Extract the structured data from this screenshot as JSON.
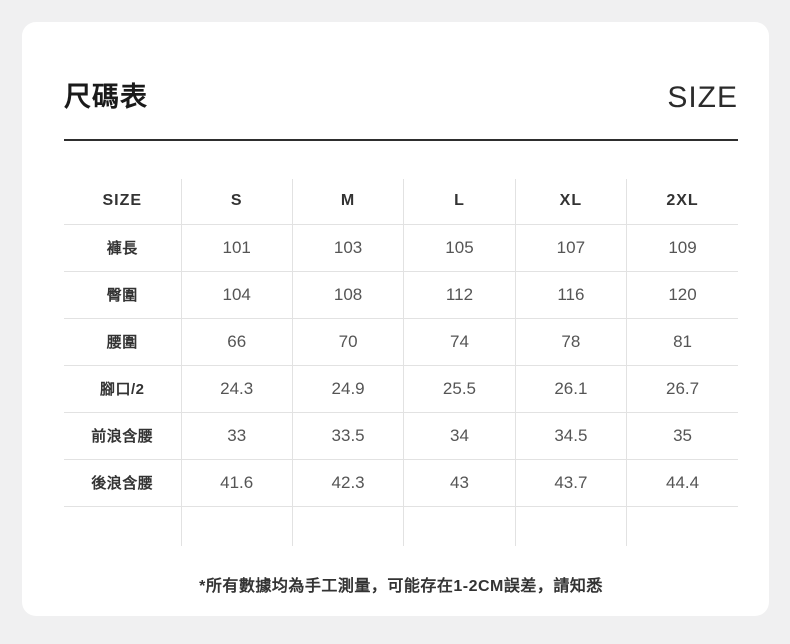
{
  "theme": {
    "page_bg": "#f0f0f1",
    "card_bg": "#ffffff",
    "grid_line": "#e2e2e2",
    "heading_rule": "#2e2e2e",
    "label_color": "#333333",
    "value_color": "#555555"
  },
  "header": {
    "title": "尺碼表",
    "right_label": "SIZE"
  },
  "chart_data": {
    "type": "table",
    "columns": [
      "SIZE",
      "S",
      "M",
      "L",
      "XL",
      "2XL"
    ],
    "rows": [
      {
        "label": "褲長",
        "values": [
          "101",
          "103",
          "105",
          "107",
          "109"
        ]
      },
      {
        "label": "臀圍",
        "values": [
          "104",
          "108",
          "112",
          "116",
          "120"
        ]
      },
      {
        "label": "腰圍",
        "values": [
          "66",
          "70",
          "74",
          "78",
          "81"
        ]
      },
      {
        "label": "腳口/2",
        "values": [
          "24.3",
          "24.9",
          "25.5",
          "26.1",
          "26.7"
        ]
      },
      {
        "label": "前浪含腰",
        "values": [
          "33",
          "33.5",
          "34",
          "34.5",
          "35"
        ]
      },
      {
        "label": "後浪含腰",
        "values": [
          "41.6",
          "42.3",
          "43",
          "43.7",
          "44.4"
        ]
      }
    ]
  },
  "footnote": "*所有數據均為手工測量，可能存在1-2CM誤差，請知悉"
}
